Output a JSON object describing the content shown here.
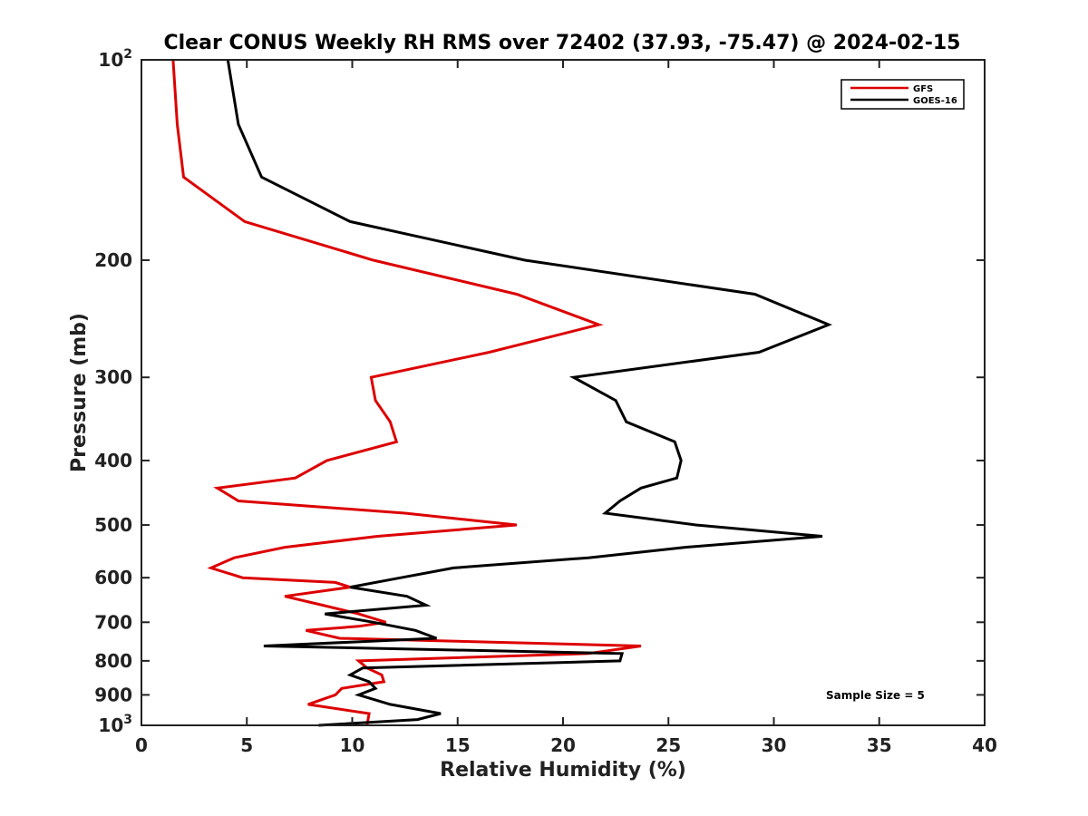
{
  "chart_data": {
    "type": "line",
    "title": "Clear CONUS Weekly RH RMS over 72402 (37.93, -75.47) @ 2024-02-15",
    "xlabel": "Relative Humidity (%)",
    "ylabel": "Pressure (mb)",
    "xlim": [
      0,
      40
    ],
    "ylim": [
      100,
      1000
    ],
    "y_scale": "log",
    "y_reversed": true,
    "x_ticks": [
      0,
      5,
      10,
      15,
      20,
      25,
      30,
      35,
      40
    ],
    "x_tick_labels": [
      "0",
      "5",
      "10",
      "15",
      "20",
      "25",
      "30",
      "35",
      "40"
    ],
    "y_ticks": [
      {
        "value": 100,
        "base": "10",
        "exp": "2"
      },
      {
        "value": 200,
        "label": "200"
      },
      {
        "value": 300,
        "label": "300"
      },
      {
        "value": 400,
        "label": "400"
      },
      {
        "value": 500,
        "label": "500"
      },
      {
        "value": 600,
        "label": "600"
      },
      {
        "value": 700,
        "label": "700"
      },
      {
        "value": 800,
        "label": "800"
      },
      {
        "value": 900,
        "label": "900"
      },
      {
        "value": 1000,
        "base": "10",
        "exp": "3"
      }
    ],
    "legend_position": "top-right",
    "annotation": "Sample Size = 5",
    "series": [
      {
        "name": "GFS",
        "color": "#dd0000",
        "points": [
          [
            1.5,
            100
          ],
          [
            1.7,
            125
          ],
          [
            2.0,
            150
          ],
          [
            4.9,
            175
          ],
          [
            11.0,
            200
          ],
          [
            17.8,
            225
          ],
          [
            21.7,
            250
          ],
          [
            16.5,
            275
          ],
          [
            10.9,
            300
          ],
          [
            11.1,
            325
          ],
          [
            11.8,
            350
          ],
          [
            12.1,
            375
          ],
          [
            8.8,
            400
          ],
          [
            7.3,
            425
          ],
          [
            3.6,
            440
          ],
          [
            4.6,
            460
          ],
          [
            12.5,
            480
          ],
          [
            17.8,
            500
          ],
          [
            11.2,
            520
          ],
          [
            6.8,
            540
          ],
          [
            4.4,
            560
          ],
          [
            3.3,
            580
          ],
          [
            4.8,
            600
          ],
          [
            9.2,
            610
          ],
          [
            9.9,
            620
          ],
          [
            6.8,
            640
          ],
          [
            8.6,
            660
          ],
          [
            10.3,
            680
          ],
          [
            11.6,
            700
          ],
          [
            10.3,
            710
          ],
          [
            7.8,
            720
          ],
          [
            9.4,
            740
          ],
          [
            23.7,
            760
          ],
          [
            21.2,
            780
          ],
          [
            10.3,
            800
          ],
          [
            10.7,
            820
          ],
          [
            11.4,
            840
          ],
          [
            11.5,
            860
          ],
          [
            9.5,
            880
          ],
          [
            9.2,
            900
          ],
          [
            7.9,
            930
          ],
          [
            10.8,
            960
          ],
          [
            10.7,
            1000
          ]
        ]
      },
      {
        "name": "GOES-16",
        "color": "#000000",
        "points": [
          [
            4.1,
            100
          ],
          [
            4.6,
            125
          ],
          [
            5.7,
            150
          ],
          [
            9.9,
            175
          ],
          [
            18.2,
            200
          ],
          [
            29.1,
            225
          ],
          [
            32.6,
            250
          ],
          [
            29.3,
            275
          ],
          [
            20.5,
            300
          ],
          [
            22.5,
            325
          ],
          [
            23.0,
            350
          ],
          [
            25.3,
            375
          ],
          [
            25.6,
            400
          ],
          [
            25.4,
            425
          ],
          [
            23.7,
            440
          ],
          [
            22.7,
            460
          ],
          [
            22.0,
            480
          ],
          [
            26.3,
            500
          ],
          [
            32.3,
            520
          ],
          [
            25.8,
            540
          ],
          [
            21.2,
            560
          ],
          [
            14.8,
            580
          ],
          [
            12.3,
            600
          ],
          [
            9.9,
            620
          ],
          [
            12.6,
            640
          ],
          [
            13.5,
            660
          ],
          [
            8.7,
            680
          ],
          [
            11.0,
            700
          ],
          [
            13.0,
            720
          ],
          [
            14.0,
            740
          ],
          [
            5.8,
            760
          ],
          [
            22.8,
            780
          ],
          [
            22.7,
            800
          ],
          [
            10.5,
            820
          ],
          [
            9.9,
            840
          ],
          [
            10.8,
            860
          ],
          [
            11.1,
            880
          ],
          [
            10.3,
            900
          ],
          [
            11.8,
            930
          ],
          [
            14.2,
            960
          ],
          [
            13.1,
            980
          ],
          [
            8.4,
            1000
          ]
        ]
      }
    ]
  }
}
